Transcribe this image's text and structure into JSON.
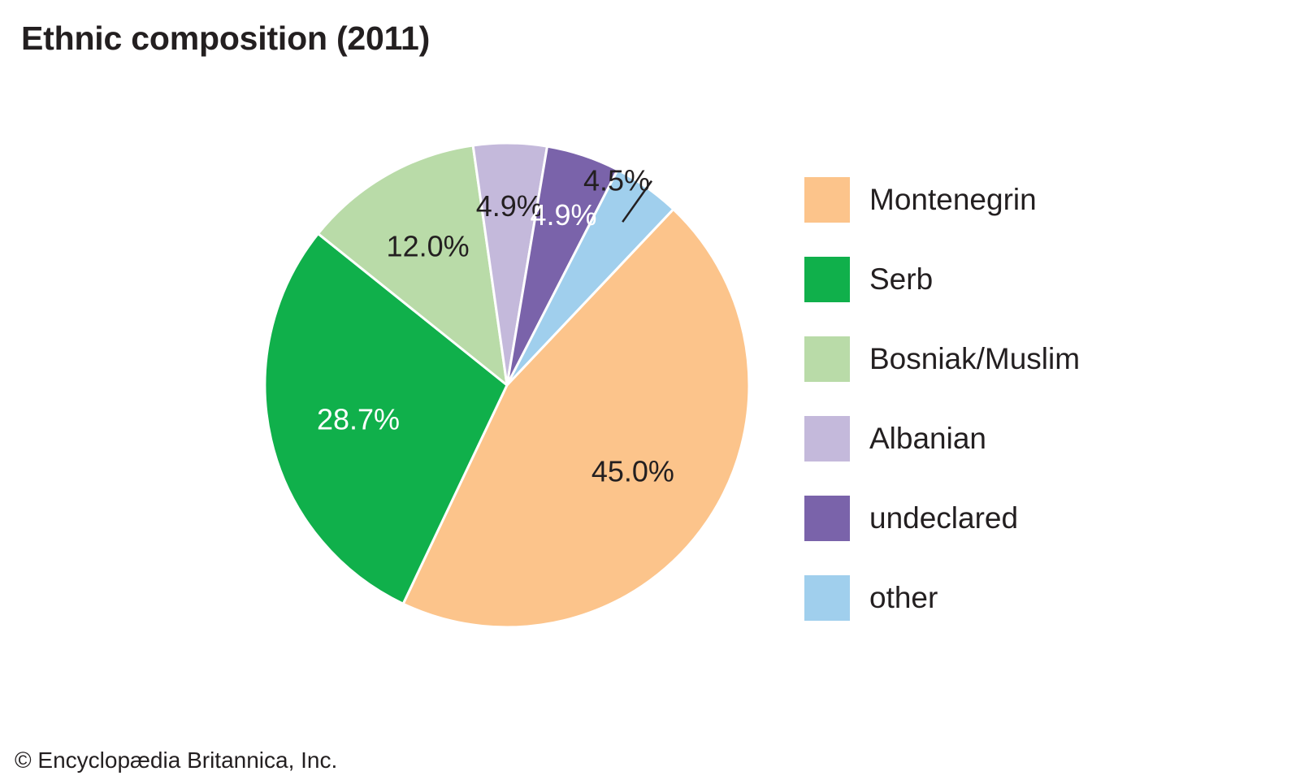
{
  "title": "Ethnic composition (2011)",
  "credit": "© Encyclopædia Britannica, Inc.",
  "chart_data": {
    "type": "pie",
    "title": "Ethnic composition (2011)",
    "legend_position": "right",
    "slices": [
      {
        "label": "Montenegrin",
        "value": 45.0,
        "value_label": "45.0%",
        "color": "#fcc48b",
        "text_color": "#231f20"
      },
      {
        "label": "Serb",
        "value": 28.7,
        "value_label": "28.7%",
        "color": "#10b04b",
        "text_color": "#ffffff"
      },
      {
        "label": "Bosniak/Muslim",
        "value": 12.0,
        "value_label": "12.0%",
        "color": "#b9dba8",
        "text_color": "#231f20"
      },
      {
        "label": "Albanian",
        "value": 4.9,
        "value_label": "4.9%",
        "color": "#c4b9db",
        "text_color": "#231f20"
      },
      {
        "label": "undeclared",
        "value": 4.9,
        "value_label": "4.9%",
        "color": "#7a63aa",
        "text_color": "#ffffff"
      },
      {
        "label": "other",
        "value": 4.5,
        "value_label": "4.5%",
        "color": "#a0cfed",
        "text_color": "#231f20",
        "label_outside": true
      }
    ]
  }
}
